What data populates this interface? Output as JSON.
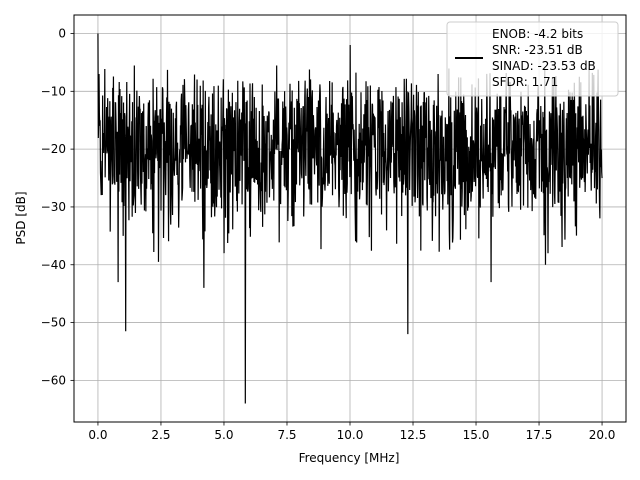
{
  "chart_data": {
    "type": "line",
    "title": "",
    "xlabel": "Frequency [MHz]",
    "ylabel": "PSD [dB]",
    "xlim": [
      -0.95,
      20.95
    ],
    "ylim": [
      -67.2,
      3.2
    ],
    "grid": true,
    "x_ticks": [
      0.0,
      2.5,
      5.0,
      7.5,
      10.0,
      12.5,
      15.0,
      17.5,
      20.0
    ],
    "x_tick_labels": [
      "0.0",
      "2.5",
      "5.0",
      "7.5",
      "10.0",
      "12.5",
      "15.0",
      "17.5",
      "20.0"
    ],
    "y_ticks": [
      0,
      -10,
      -20,
      -30,
      -40,
      -50,
      -60
    ],
    "y_tick_labels": [
      "0",
      "−10",
      "−20",
      "−30",
      "−40",
      "−50",
      "−60"
    ],
    "legend": {
      "placement": "top-right",
      "entries": [
        "ENOB: -4.2 bits",
        "SNR: -23.51 dB",
        "SINAD: -23.53 dB",
        "SFDR: 1.71"
      ]
    },
    "series": [
      {
        "color": "#000000",
        "noise_band_db": [
          -30,
          -10
        ],
        "x": [
          0.0,
          0.05,
          0.08,
          0.12,
          0.5,
          0.8,
          1.0,
          1.1,
          2.4,
          4.2,
          5.0,
          5.85,
          7.4,
          10.0,
          12.3,
          13.5,
          15.6,
          17.75,
          17.85,
          20.0
        ],
        "y": [
          0,
          -7,
          -15,
          -26,
          -25,
          -43,
          -35,
          -51.5,
          -39.5,
          -44,
          -38,
          -64,
          -10,
          -2,
          -52,
          -7,
          -43,
          -40,
          -38,
          -25
        ]
      }
    ]
  }
}
